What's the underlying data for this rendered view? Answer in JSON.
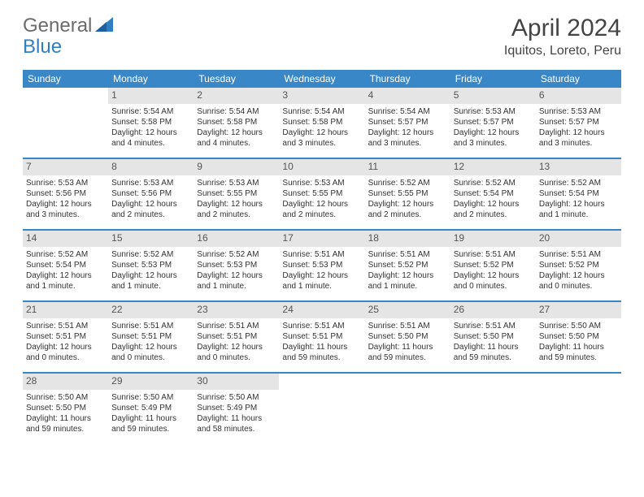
{
  "logo": {
    "text1": "General",
    "text2": "Blue"
  },
  "title": "April 2024",
  "location": "Iquitos, Loreto, Peru",
  "colors": {
    "header_bg": "#3a87c8",
    "header_text": "#ffffff",
    "daynum_bg": "#e5e5e5",
    "rule": "#3a87c8",
    "body_text": "#333333",
    "logo_gray": "#6b6b6b",
    "logo_blue": "#2f7fc2"
  },
  "day_headers": [
    "Sunday",
    "Monday",
    "Tuesday",
    "Wednesday",
    "Thursday",
    "Friday",
    "Saturday"
  ],
  "weeks": [
    [
      {
        "n": "",
        "sr": "",
        "ss": "",
        "dl": ""
      },
      {
        "n": "1",
        "sr": "Sunrise: 5:54 AM",
        "ss": "Sunset: 5:58 PM",
        "dl": "Daylight: 12 hours and 4 minutes."
      },
      {
        "n": "2",
        "sr": "Sunrise: 5:54 AM",
        "ss": "Sunset: 5:58 PM",
        "dl": "Daylight: 12 hours and 4 minutes."
      },
      {
        "n": "3",
        "sr": "Sunrise: 5:54 AM",
        "ss": "Sunset: 5:58 PM",
        "dl": "Daylight: 12 hours and 3 minutes."
      },
      {
        "n": "4",
        "sr": "Sunrise: 5:54 AM",
        "ss": "Sunset: 5:57 PM",
        "dl": "Daylight: 12 hours and 3 minutes."
      },
      {
        "n": "5",
        "sr": "Sunrise: 5:53 AM",
        "ss": "Sunset: 5:57 PM",
        "dl": "Daylight: 12 hours and 3 minutes."
      },
      {
        "n": "6",
        "sr": "Sunrise: 5:53 AM",
        "ss": "Sunset: 5:57 PM",
        "dl": "Daylight: 12 hours and 3 minutes."
      }
    ],
    [
      {
        "n": "7",
        "sr": "Sunrise: 5:53 AM",
        "ss": "Sunset: 5:56 PM",
        "dl": "Daylight: 12 hours and 3 minutes."
      },
      {
        "n": "8",
        "sr": "Sunrise: 5:53 AM",
        "ss": "Sunset: 5:56 PM",
        "dl": "Daylight: 12 hours and 2 minutes."
      },
      {
        "n": "9",
        "sr": "Sunrise: 5:53 AM",
        "ss": "Sunset: 5:55 PM",
        "dl": "Daylight: 12 hours and 2 minutes."
      },
      {
        "n": "10",
        "sr": "Sunrise: 5:53 AM",
        "ss": "Sunset: 5:55 PM",
        "dl": "Daylight: 12 hours and 2 minutes."
      },
      {
        "n": "11",
        "sr": "Sunrise: 5:52 AM",
        "ss": "Sunset: 5:55 PM",
        "dl": "Daylight: 12 hours and 2 minutes."
      },
      {
        "n": "12",
        "sr": "Sunrise: 5:52 AM",
        "ss": "Sunset: 5:54 PM",
        "dl": "Daylight: 12 hours and 2 minutes."
      },
      {
        "n": "13",
        "sr": "Sunrise: 5:52 AM",
        "ss": "Sunset: 5:54 PM",
        "dl": "Daylight: 12 hours and 1 minute."
      }
    ],
    [
      {
        "n": "14",
        "sr": "Sunrise: 5:52 AM",
        "ss": "Sunset: 5:54 PM",
        "dl": "Daylight: 12 hours and 1 minute."
      },
      {
        "n": "15",
        "sr": "Sunrise: 5:52 AM",
        "ss": "Sunset: 5:53 PM",
        "dl": "Daylight: 12 hours and 1 minute."
      },
      {
        "n": "16",
        "sr": "Sunrise: 5:52 AM",
        "ss": "Sunset: 5:53 PM",
        "dl": "Daylight: 12 hours and 1 minute."
      },
      {
        "n": "17",
        "sr": "Sunrise: 5:51 AM",
        "ss": "Sunset: 5:53 PM",
        "dl": "Daylight: 12 hours and 1 minute."
      },
      {
        "n": "18",
        "sr": "Sunrise: 5:51 AM",
        "ss": "Sunset: 5:52 PM",
        "dl": "Daylight: 12 hours and 1 minute."
      },
      {
        "n": "19",
        "sr": "Sunrise: 5:51 AM",
        "ss": "Sunset: 5:52 PM",
        "dl": "Daylight: 12 hours and 0 minutes."
      },
      {
        "n": "20",
        "sr": "Sunrise: 5:51 AM",
        "ss": "Sunset: 5:52 PM",
        "dl": "Daylight: 12 hours and 0 minutes."
      }
    ],
    [
      {
        "n": "21",
        "sr": "Sunrise: 5:51 AM",
        "ss": "Sunset: 5:51 PM",
        "dl": "Daylight: 12 hours and 0 minutes."
      },
      {
        "n": "22",
        "sr": "Sunrise: 5:51 AM",
        "ss": "Sunset: 5:51 PM",
        "dl": "Daylight: 12 hours and 0 minutes."
      },
      {
        "n": "23",
        "sr": "Sunrise: 5:51 AM",
        "ss": "Sunset: 5:51 PM",
        "dl": "Daylight: 12 hours and 0 minutes."
      },
      {
        "n": "24",
        "sr": "Sunrise: 5:51 AM",
        "ss": "Sunset: 5:51 PM",
        "dl": "Daylight: 11 hours and 59 minutes."
      },
      {
        "n": "25",
        "sr": "Sunrise: 5:51 AM",
        "ss": "Sunset: 5:50 PM",
        "dl": "Daylight: 11 hours and 59 minutes."
      },
      {
        "n": "26",
        "sr": "Sunrise: 5:51 AM",
        "ss": "Sunset: 5:50 PM",
        "dl": "Daylight: 11 hours and 59 minutes."
      },
      {
        "n": "27",
        "sr": "Sunrise: 5:50 AM",
        "ss": "Sunset: 5:50 PM",
        "dl": "Daylight: 11 hours and 59 minutes."
      }
    ],
    [
      {
        "n": "28",
        "sr": "Sunrise: 5:50 AM",
        "ss": "Sunset: 5:50 PM",
        "dl": "Daylight: 11 hours and 59 minutes."
      },
      {
        "n": "29",
        "sr": "Sunrise: 5:50 AM",
        "ss": "Sunset: 5:49 PM",
        "dl": "Daylight: 11 hours and 59 minutes."
      },
      {
        "n": "30",
        "sr": "Sunrise: 5:50 AM",
        "ss": "Sunset: 5:49 PM",
        "dl": "Daylight: 11 hours and 58 minutes."
      },
      {
        "n": "",
        "sr": "",
        "ss": "",
        "dl": ""
      },
      {
        "n": "",
        "sr": "",
        "ss": "",
        "dl": ""
      },
      {
        "n": "",
        "sr": "",
        "ss": "",
        "dl": ""
      },
      {
        "n": "",
        "sr": "",
        "ss": "",
        "dl": ""
      }
    ]
  ]
}
